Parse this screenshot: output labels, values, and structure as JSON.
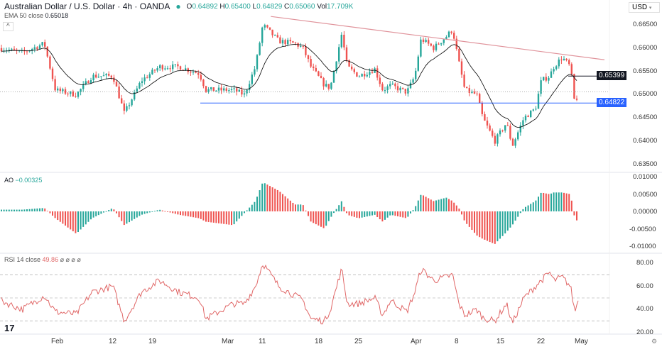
{
  "header": {
    "title": "Australian Dollar / U.S. Dollar · 4h · OANDA",
    "open": "0.64892",
    "high": "0.65400",
    "low": "0.64829",
    "close": "0.65060",
    "volume": "17.709K",
    "ema_label": "EMA 50 close",
    "ema_value": "0.65018"
  },
  "currency_button": "USD",
  "ao": {
    "label": "AO",
    "value": "−0.00325"
  },
  "rsi": {
    "label": "RSI 14 close",
    "value": "49.86",
    "extra": "⌀ ⌀ ⌀ ⌀"
  },
  "colors": {
    "up": "#26a69a",
    "down": "#ef5350",
    "ema": "#000000",
    "trendline": "#e0939b",
    "support": "#2962ff",
    "rsi": "#e06666"
  },
  "chart_data": [
    {
      "type": "candlestick",
      "series_name": "Australian Dollar / U.S. Dollar",
      "x": [
        "2024-01-22",
        "2024-01-26",
        "2024-01-30",
        "2024-02-01",
        "2024-02-05",
        "2024-02-08",
        "2024-02-12",
        "2024-02-14",
        "2024-02-17",
        "2024-02-20",
        "2024-02-23",
        "2024-02-26",
        "2024-02-27",
        "2024-03-03",
        "2024-03-06",
        "2024-03-09",
        "2024-03-11",
        "2024-03-13",
        "2024-03-15",
        "2024-03-16",
        "2024-03-17",
        "2024-03-19",
        "2024-03-20",
        "2024-03-22",
        "2024-03-23",
        "2024-03-25",
        "2024-03-27",
        "2024-03-28",
        "2024-03-29",
        "2024-03-31",
        "2024-04-01",
        "2024-04-02",
        "2024-04-04",
        "2024-04-06",
        "2024-04-07",
        "2024-04-08",
        "2024-04-09",
        "2024-04-11",
        "2024-04-12",
        "2024-04-14",
        "2024-04-16",
        "2024-04-17",
        "2024-04-19",
        "2024-04-21",
        "2024-04-22",
        "2024-04-24",
        "2024-04-25",
        "2024-04-27",
        "2024-04-29",
        "2024-04-30",
        "2024-05-01"
      ],
      "close": [
        0.66,
        0.659,
        0.661,
        0.651,
        0.65,
        0.654,
        0.654,
        0.646,
        0.653,
        0.656,
        0.656,
        0.6545,
        0.651,
        0.651,
        0.65,
        0.656,
        0.665,
        0.6615,
        0.661,
        0.66,
        0.656,
        0.652,
        0.6515,
        0.663,
        0.656,
        0.654,
        0.6555,
        0.651,
        0.652,
        0.6505,
        0.654,
        0.662,
        0.66,
        0.6625,
        0.664,
        0.657,
        0.651,
        0.65,
        0.645,
        0.64,
        0.644,
        0.639,
        0.645,
        0.647,
        0.653,
        0.654,
        0.656,
        0.658,
        0.656,
        0.648,
        0.6506
      ],
      "ylim": [
        0.633,
        0.668
      ],
      "yticks": [
        "0.66500",
        "0.66000",
        "0.65500",
        "0.65000",
        "0.64500",
        "0.64000",
        "0.63500"
      ],
      "xticks": [
        "Feb",
        "12",
        "19",
        "Mar",
        "11",
        "18",
        "25",
        "Apr",
        "8",
        "15",
        "22",
        "May"
      ],
      "levels": {
        "resistance": "0.65399",
        "support": "0.64822"
      },
      "trendline": {
        "from": [
          "2024-03-12",
          0.6668
        ],
        "to": [
          "2024-05-07",
          0.6575
        ]
      }
    },
    {
      "type": "histogram",
      "name": "AO",
      "ylim": [
        -0.0108,
        0.0105
      ],
      "yticks": [
        "0.01000",
        "0.00500",
        "0.00000",
        "-0.00500",
        "-0.01000"
      ],
      "values": [
        0.0005,
        0.0005,
        0.001,
        -0.002,
        -0.0065,
        -0.002,
        0.001,
        -0.004,
        -0.001,
        0.0005,
        -0.001,
        -0.002,
        -0.003,
        -0.004,
        -0.0005,
        0.003,
        0.0085,
        0.006,
        0.002,
        0.002,
        -0.003,
        -0.005,
        -0.002,
        0.003,
        -0.001,
        -0.002,
        -0.001,
        -0.003,
        -0.001,
        -0.002,
        0.001,
        0.005,
        0.003,
        0.004,
        0.003,
        0.001,
        -0.003,
        -0.007,
        -0.008,
        -0.0095,
        -0.006,
        -0.004,
        0.001,
        0.003,
        0.0055,
        0.005,
        0.0055,
        0.0055,
        0.005,
        -0.002,
        -0.00325
      ]
    },
    {
      "type": "line",
      "name": "RSI 14",
      "ylim": [
        17,
        88
      ],
      "yticks": [
        "80.00",
        "60.00",
        "40.00",
        "20.00"
      ],
      "bands": [
        70,
        50,
        30
      ],
      "values": [
        48,
        40,
        52,
        38,
        36,
        55,
        60,
        30,
        55,
        65,
        55,
        50,
        32,
        45,
        45,
        60,
        80,
        60,
        52,
        48,
        32,
        30,
        40,
        75,
        45,
        45,
        50,
        35,
        48,
        38,
        55,
        75,
        65,
        68,
        70,
        45,
        35,
        40,
        33,
        30,
        45,
        28,
        50,
        60,
        65,
        72,
        65,
        68,
        60,
        38,
        49.86
      ]
    }
  ]
}
